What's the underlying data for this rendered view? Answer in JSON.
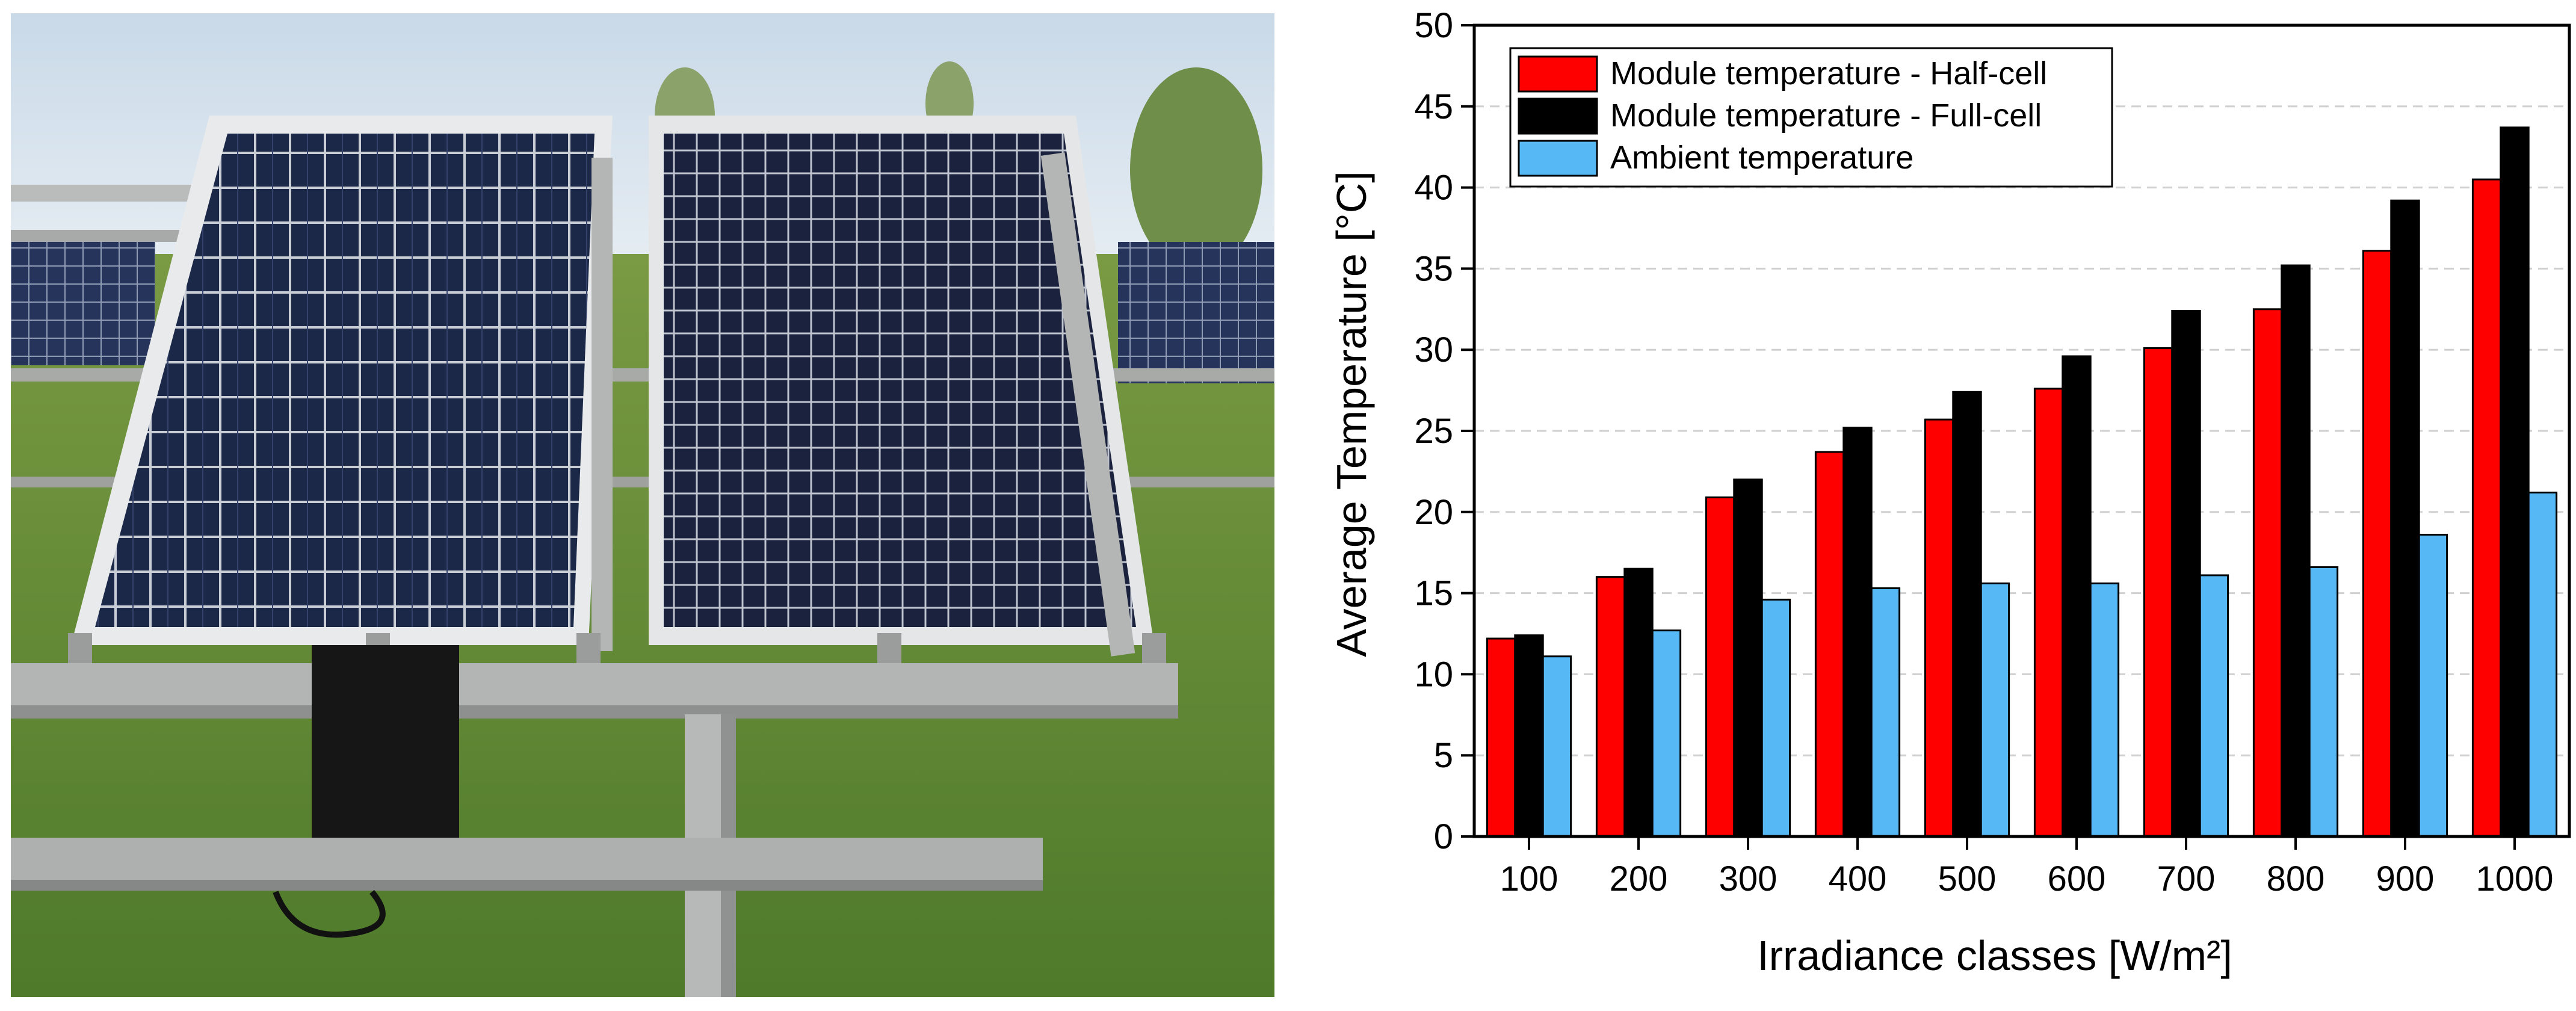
{
  "photo": {
    "subject": "two-solar-modules-on-ground-mount-rack"
  },
  "colors": {
    "half_cell": "#ff0000",
    "full_cell": "#000000",
    "ambient": "#56b9f5",
    "grid": "#d0d0d0"
  },
  "chart_data": {
    "type": "bar",
    "xlabel": "Irradiance classes [W/m²]",
    "ylabel": "Average Temperature [°C]",
    "ylim": [
      0,
      50
    ],
    "yticks": [
      0,
      5,
      10,
      15,
      20,
      25,
      30,
      35,
      40,
      45,
      50
    ],
    "categories": [
      "100",
      "200",
      "300",
      "400",
      "500",
      "600",
      "700",
      "800",
      "900",
      "1000"
    ],
    "grid": "horizontal-dashed",
    "legend_position": "top-left",
    "series": [
      {
        "name": "Module temperature - Half-cell",
        "color": "#ff0000",
        "values": [
          12.2,
          16.0,
          20.9,
          23.7,
          25.7,
          27.6,
          30.1,
          32.5,
          36.1,
          40.5
        ]
      },
      {
        "name": "Module temperature - Full-cell",
        "color": "#000000",
        "values": [
          12.4,
          16.5,
          22.0,
          25.2,
          27.4,
          29.6,
          32.4,
          35.2,
          39.2,
          43.7
        ]
      },
      {
        "name": "Ambient temperature",
        "color": "#56b9f5",
        "values": [
          11.1,
          12.7,
          14.6,
          15.3,
          15.6,
          15.6,
          16.1,
          16.6,
          18.6,
          21.2
        ]
      }
    ]
  }
}
